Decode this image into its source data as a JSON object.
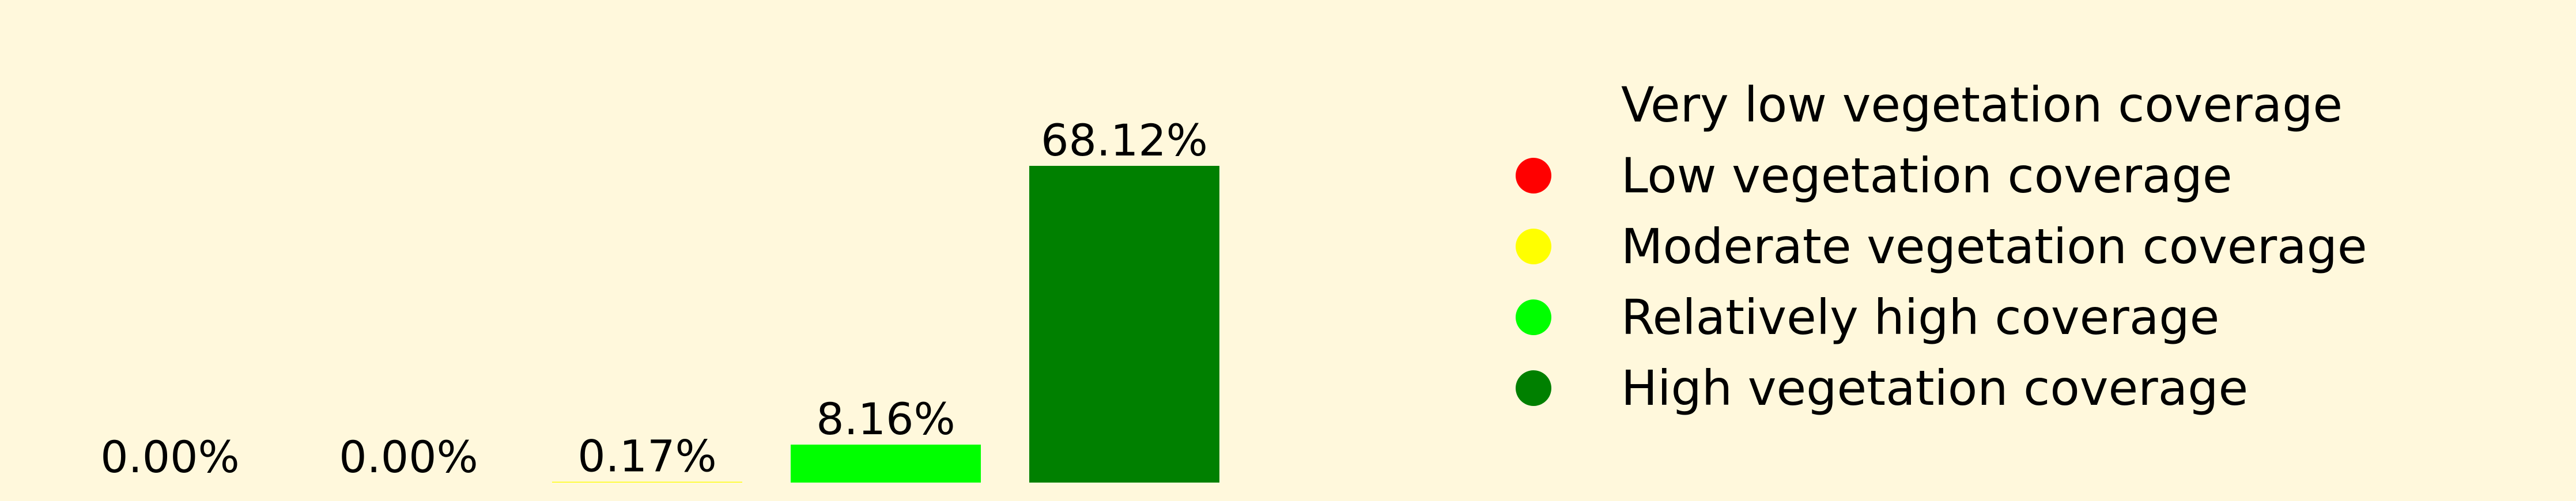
{
  "chart_data": {
    "type": "bar",
    "categories": [
      "Very low vegetation coverage",
      "Low vegetation coverage",
      "Moderate vegetation coverage",
      "Relatively high coverage",
      "High vegetation coverage"
    ],
    "values": [
      0.0,
      0.0,
      0.17,
      8.16,
      68.12
    ],
    "value_labels": [
      "0.00%",
      "0.00%",
      "0.17%",
      "8.16%",
      "68.12%"
    ],
    "colors": [
      "#000000",
      "#FF0000",
      "#FFFF00",
      "#00FF00",
      "#008000"
    ],
    "ylim": [
      0,
      68.12
    ],
    "grid": false,
    "legend_position": "right"
  },
  "legend": {
    "items": [
      {
        "label": "Very low vegetation coverage",
        "color": "#FFF8DC"
      },
      {
        "label": "Low vegetation coverage",
        "color": "#FF0000"
      },
      {
        "label": "Moderate vegetation coverage",
        "color": "#FFFF00"
      },
      {
        "label": "Relatively high coverage",
        "color": "#00FF00"
      },
      {
        "label": "High vegetation coverage",
        "color": "#008000"
      }
    ]
  },
  "colors": {
    "background": "#FFF8DC",
    "text": "#000000"
  }
}
